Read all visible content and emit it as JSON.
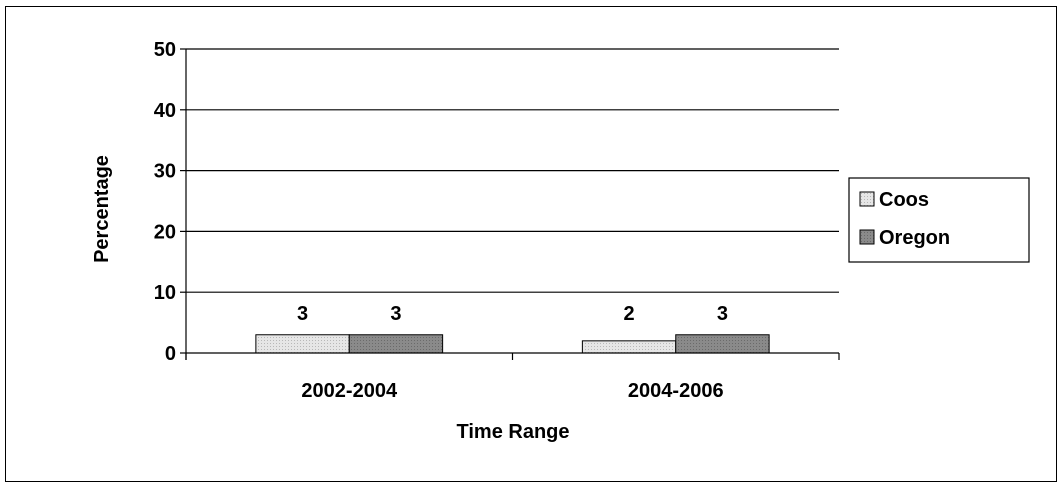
{
  "chart_data": {
    "type": "bar",
    "title": "",
    "xlabel": "Time Range",
    "ylabel": "Percentage",
    "ylim": [
      0,
      50
    ],
    "yticks": [
      0,
      10,
      20,
      30,
      40,
      50
    ],
    "grid": true,
    "legend_position": "right",
    "categories": [
      "2002-2004",
      "2004-2006"
    ],
    "series": [
      {
        "name": "Coos",
        "values": [
          3,
          2
        ],
        "labels": [
          "3",
          "2"
        ],
        "color": "#e3e3e3"
      },
      {
        "name": "Oregon",
        "values": [
          3,
          3
        ],
        "labels": [
          "3",
          "3"
        ],
        "color": "#808080"
      }
    ]
  }
}
